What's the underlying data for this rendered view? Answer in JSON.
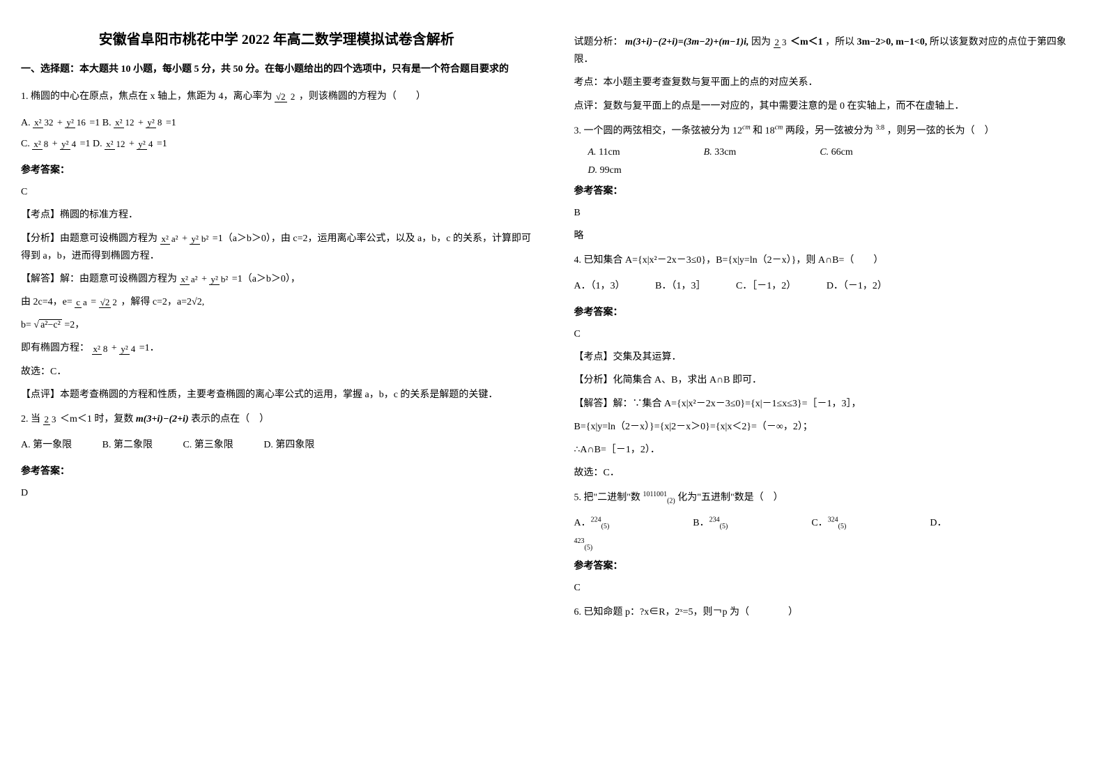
{
  "title": "安徽省阜阳市桃花中学 2022 年高二数学理模拟试卷含解析",
  "section1": "一、选择题：本大题共 10 小题，每小题 5 分，共 50 分。在每小题给出的四个选项中，只有是一个符合题目要求的",
  "q1": {
    "text": "1. 椭圆的中心在原点，焦点在 x 轴上，焦距为 4，离心率为",
    "tail": "，则该椭圆的方程为（　　）",
    "optA_pre": "A. ",
    "optB_pre": "B. ",
    "optC_pre": "C. ",
    "optD_pre": "D. ",
    "eq1_suffix": "=1",
    "answer_label": "参考答案：",
    "answer": "C",
    "analysis_label": "【考点】椭圆的标准方程．",
    "analysis1_pre": "【分析】由题意可设椭圆方程为",
    "analysis1_suf": "=1（a＞b＞0），由 c=2，运用离心率公式，以及 a，b，c 的关系，计算即可得到 a，b，进而得到椭圆方程．",
    "solve_pre": "【解答】解：由题意可设椭圆方程为",
    "solve_suf": "=1（a＞b＞0），",
    "solve2_pre": "由 2c=4，e=",
    "solve2_mid": "=",
    "solve2_suf": "，解得 c=2，a=2√2,",
    "solve3_pre": "b=",
    "solve3_suf": "=2，",
    "solve4": "即有椭圆方程：",
    "solve4_suf": "=1．",
    "conclusion": "故选：C．",
    "comment": "【点评】本题考查椭圆的方程和性质，主要考查椭圆的离心率公式的运用，掌握 a，b，c 的关系是解题的关键．"
  },
  "q2": {
    "text_pre": "2. 当",
    "text_suf": "时，复数",
    "expr": "m(3+i)−(2+i)",
    "tail": "表示的点在（　）",
    "optA": "A. 第一象限",
    "optB": "B. 第二象限",
    "optC": "C. 第三象限",
    "optD": "D. 第四象限",
    "answer_label": "参考答案：",
    "answer": "D"
  },
  "col2": {
    "analysis_pre": "试题分析：",
    "expr1": "m(3+i)−(2+i)=(3m−2)+(m−1)i,",
    "because": "因为",
    "so": "，所以",
    "concl": "3m−2>0, m−1<0,",
    "tail": "所以该复数对应的点位于第四象限．",
    "point": "考点：本小题主要考查复数与复平面上的点的对应关系．",
    "comment": "点评：复数与复平面上的点是一一对应的，其中需要注意的是 0 在实轴上，而不在虚轴上．"
  },
  "q3": {
    "text": "3. 一个圆的两弦相交，一条弦被分为 12",
    "cm1": "cm",
    "text2": "和 18",
    "cm2": "cm",
    "text3": "两段，另一弦被分为",
    "ratio": "3:8",
    "text4": "，则另一弦的长为（　）",
    "optA": "A.",
    "optA_val": "11cm",
    "optB": "B.",
    "optB_val": "33cm",
    "optC": "C.",
    "optC_val": "66cm",
    "optD": "D.",
    "optD_val": "99cm",
    "answer_label": "参考答案：",
    "answer": "B",
    "brief": "略"
  },
  "q4": {
    "text": "4. 已知集合 A={x|x²－2x－3≤0}，B={x|y=ln（2－x）}，则 A∩B=（　　）",
    "optA": "A．（1，3）",
    "optB": "B．（1，3］",
    "optC": "C．［－1，2）",
    "optD": "D．（－1，2）",
    "answer_label": "参考答案：",
    "answer": "C",
    "point": "【考点】交集及其运算．",
    "analysis": "【分析】化简集合 A、B，求出 A∩B 即可．",
    "solve1": "【解答】解：∵集合 A={x|x²－2x－3≤0}={x|－1≤x≤3}=［－1，3］，",
    "solve2": "B={x|y=ln（2－x）}={x|2－x＞0}={x|x＜2}=（－∞，2）；",
    "solve3": "∴A∩B=［－1，2）．",
    "conclusion": "故选：C．"
  },
  "q5": {
    "text_pre": "5. 把\"二进制\"数",
    "num": "1011001",
    "sub": "(2)",
    "text_suf": "化为\"五进制\"数是（　）",
    "optA": "A．",
    "optA_val": "224",
    "optA_sub": "(5)",
    "optB": "B．",
    "optB_val": "234",
    "optB_sub": "(5)",
    "optC": "C．",
    "optC_val": "324",
    "optC_sub": "(5)",
    "optD": "D．",
    "optD_val": "423",
    "optD_sub": "(5)",
    "answer_label": "参考答案：",
    "answer": "C"
  },
  "q6": {
    "text": "6. 已知命题 p：?x∈R，2ˣ=5，则￢p 为（　　　　）"
  },
  "math": {
    "sqrt2": "√2",
    "two": "2",
    "x2": "x²",
    "y2": "y²",
    "n32": "32",
    "n16": "16",
    "n12": "12",
    "n8": "8",
    "n4": "4",
    "a2": "a²",
    "b2": "b²",
    "c": "c",
    "a": "a",
    "a2c2": "a²−c²",
    "two_thirds": "2",
    "three": "3",
    "lt_m_lt": "＜m＜1"
  }
}
